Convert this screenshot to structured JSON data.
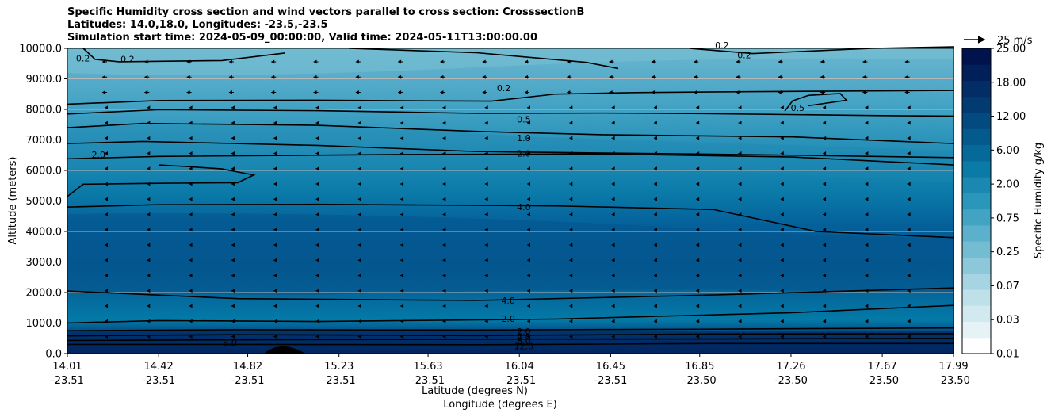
{
  "title": {
    "line1": "Specific Humidity cross section and wind vectors parallel to cross section: CrosssectionB",
    "line2": "Latitudes: 14.0,18.0, Longitudes: -23.5,-23.5",
    "line3": "Simulation start time: 2024-05-09_00:00:00, Valid time: 2024-05-11T13:00:00.00"
  },
  "chart_data": {
    "type": "heatmap",
    "subtype": "filled contour cross-section with wind vectors",
    "title": "Specific Humidity cross section and wind vectors parallel to cross section: CrosssectionB",
    "ylabel": "Altitude (meters)",
    "xlabel_lines": [
      "Latitude (degrees N)",
      "Longitude (degrees E)"
    ],
    "ylim": [
      0,
      10000
    ],
    "yticks": [
      "0.0",
      "1000.0",
      "2000.0",
      "3000.0",
      "4000.0",
      "5000.0",
      "6000.0",
      "7000.0",
      "8000.0",
      "9000.0",
      "10000.0"
    ],
    "ytick_values": [
      0,
      1000,
      2000,
      3000,
      4000,
      5000,
      6000,
      7000,
      8000,
      9000,
      10000
    ],
    "xlim": [
      14.01,
      17.99
    ],
    "xticks": [
      {
        "lat": "14.01",
        "lon": "-23.51",
        "value": 14.01
      },
      {
        "lat": "14.42",
        "lon": "-23.51",
        "value": 14.42
      },
      {
        "lat": "14.82",
        "lon": "-23.51",
        "value": 14.82
      },
      {
        "lat": "15.23",
        "lon": "-23.51",
        "value": 15.23
      },
      {
        "lat": "15.63",
        "lon": "-23.51",
        "value": 15.63
      },
      {
        "lat": "16.04",
        "lon": "-23.51",
        "value": 16.04
      },
      {
        "lat": "16.45",
        "lon": "-23.51",
        "value": 16.45
      },
      {
        "lat": "16.85",
        "lon": "-23.50",
        "value": 16.85
      },
      {
        "lat": "17.26",
        "lon": "-23.50",
        "value": 17.26
      },
      {
        "lat": "17.67",
        "lon": "-23.50",
        "value": 17.67
      },
      {
        "lat": "17.99",
        "lon": "-23.50",
        "value": 17.99
      }
    ],
    "grid": "horizontal",
    "colorbar": {
      "label": "Specific Humidity g/kg",
      "ticks": [
        "0.01",
        "0.03",
        "0.07",
        "0.25",
        "0.75",
        "2.00",
        "6.00",
        "12.00",
        "18.00",
        "25.00"
      ],
      "colors": [
        "#ffffff",
        "#e6f3f6",
        "#d2eaef",
        "#bde0e9",
        "#a6d4e2",
        "#8dc8da",
        "#74bcd2",
        "#5bb0cb",
        "#42a3c2",
        "#2a96b9",
        "#1a88b0",
        "#0a7aa6",
        "#056a9a",
        "#045a8d",
        "#034a80",
        "#023b72",
        "#022d66",
        "#011f59",
        "#01134d"
      ]
    },
    "wind_key": {
      "label": "25 m/s",
      "speed": 25
    },
    "contours": [
      {
        "label": "0.2",
        "level": 0.2
      },
      {
        "label": "0.5",
        "level": 0.5
      },
      {
        "label": "1.0",
        "level": 1.0
      },
      {
        "label": "2.0",
        "level": 2.0
      },
      {
        "label": "4.0",
        "level": 4.0
      },
      {
        "label": "8.0",
        "level": 8.0
      },
      {
        "label": "12.0",
        "level": 12.0
      }
    ],
    "contour_labels": [
      {
        "text": "0.2",
        "lat": 14.08,
        "alt": 9680
      },
      {
        "text": "0.2",
        "lat": 14.28,
        "alt": 9650
      },
      {
        "text": "0.2",
        "lat": 15.97,
        "alt": 8700
      },
      {
        "text": "0.2",
        "lat": 16.95,
        "alt": 10100
      },
      {
        "text": "0.2",
        "lat": 17.05,
        "alt": 9780
      },
      {
        "text": "0.5",
        "lat": 16.06,
        "alt": 7680
      },
      {
        "text": "0.5",
        "lat": 17.29,
        "alt": 8050
      },
      {
        "text": "1.0",
        "lat": 16.06,
        "alt": 7070
      },
      {
        "text": "2.0",
        "lat": 16.06,
        "alt": 6560
      },
      {
        "text": "2.0",
        "lat": 14.15,
        "alt": 6520
      },
      {
        "text": "4.0",
        "lat": 16.06,
        "alt": 4800
      },
      {
        "text": "4.0",
        "lat": 15.99,
        "alt": 1740
      },
      {
        "text": "2.0",
        "lat": 15.99,
        "alt": 1140
      },
      {
        "text": "2.0",
        "lat": 16.06,
        "alt": 730
      },
      {
        "text": "4.0",
        "lat": 16.06,
        "alt": 560
      },
      {
        "text": "8.0",
        "lat": 16.06,
        "alt": 420
      },
      {
        "text": "8.0",
        "lat": 14.74,
        "alt": 350
      },
      {
        "text": "12.0",
        "lat": 16.06,
        "alt": 250
      }
    ]
  }
}
